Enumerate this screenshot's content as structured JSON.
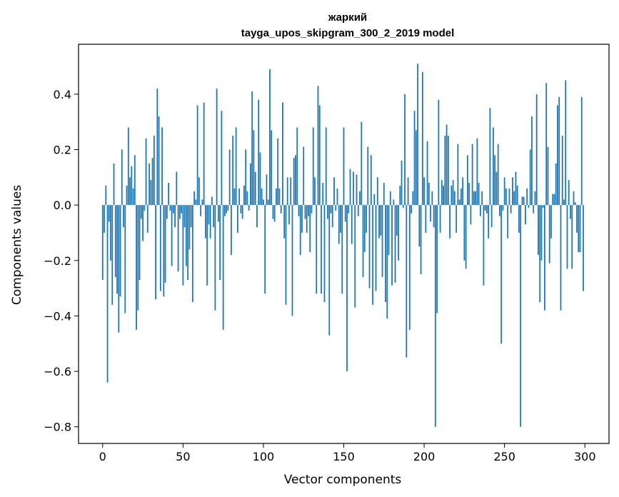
{
  "chart_data": {
    "type": "bar",
    "title": "жаркий",
    "subtitle": "tayga_upos_skipgram_300_2_2019 model",
    "xlabel": "Vector components",
    "ylabel": "Components values",
    "xlim": [
      -15,
      315
    ],
    "ylim": [
      -0.86,
      0.58
    ],
    "xticks": [
      0,
      50,
      100,
      150,
      200,
      250,
      300
    ],
    "xtick_labels": [
      "0",
      "50",
      "100",
      "150",
      "200",
      "250",
      "300"
    ],
    "yticks": [
      -0.8,
      -0.6,
      -0.4,
      -0.2,
      0.0,
      0.2,
      0.4
    ],
    "ytick_labels": [
      "−0.8",
      "−0.6",
      "−0.4",
      "−0.2",
      "0.0",
      "0.2",
      "0.4"
    ],
    "bar_color": "#1f77b4",
    "grid": false,
    "x": "indices 0..299",
    "values": [
      -0.27,
      -0.1,
      0.07,
      -0.64,
      -0.06,
      -0.2,
      -0.36,
      0.15,
      -0.26,
      -0.32,
      -0.46,
      -0.33,
      0.2,
      -0.08,
      -0.39,
      0.07,
      0.28,
      0.1,
      0.14,
      0.06,
      0.18,
      -0.45,
      -0.38,
      -0.27,
      -0.05,
      -0.13,
      -0.02,
      0.24,
      -0.1,
      0.15,
      0.09,
      0.17,
      0.25,
      -0.34,
      0.42,
      0.32,
      -0.31,
      0.28,
      -0.33,
      -0.28,
      -0.05,
      0.08,
      -0.02,
      -0.22,
      -0.03,
      -0.08,
      0.12,
      -0.24,
      -0.05,
      -0.03,
      -0.29,
      -0.08,
      -0.22,
      -0.27,
      -0.16,
      -0.08,
      -0.35,
      0.05,
      0.02,
      0.36,
      0.1,
      -0.04,
      0.02,
      0.37,
      -0.12,
      -0.29,
      -0.07,
      -0.12,
      0.03,
      -0.08,
      -0.38,
      0.42,
      -0.06,
      -0.27,
      0.34,
      -0.45,
      -0.04,
      -0.03,
      -0.02,
      0.2,
      -0.18,
      0.25,
      0.06,
      0.28,
      -0.1,
      0.06,
      -0.03,
      -0.05,
      0.07,
      0.2,
      0.05,
      -0.02,
      0.15,
      0.41,
      0.27,
      0.12,
      -0.08,
      0.38,
      0.19,
      0.06,
      0.02,
      -0.32,
      0.11,
      0.02,
      0.49,
      0.27,
      -0.05,
      -0.06,
      0.06,
      0.24,
      0.06,
      -0.03,
      0.37,
      -0.12,
      -0.36,
      0.1,
      -0.07,
      0.1,
      -0.4,
      0.17,
      0.18,
      0.28,
      -0.04,
      -0.18,
      -0.1,
      0.21,
      -0.05,
      -0.1,
      -0.04,
      -0.17,
      -0.03,
      0.28,
      0.1,
      -0.32,
      0.43,
      0.36,
      -0.32,
      0.08,
      -0.35,
      0.28,
      -0.05,
      -0.47,
      -0.03,
      -0.08,
      0.1,
      -0.02,
      0.06,
      -0.14,
      -0.1,
      -0.32,
      0.28,
      -0.06,
      -0.6,
      -0.03,
      0.13,
      -0.14,
      0.12,
      -0.37,
      0.11,
      -0.04,
      0.05,
      0.3,
      -0.26,
      -0.17,
      -0.1,
      0.21,
      -0.3,
      0.18,
      -0.36,
      0.04,
      -0.31,
      0.1,
      -0.12,
      -0.11,
      -0.26,
      0.08,
      -0.35,
      -0.41,
      -0.18,
      0.05,
      -0.29,
      0.02,
      -0.28,
      -0.11,
      -0.2,
      0.07,
      0.16,
      -0.01,
      0.4,
      -0.55,
      0.1,
      -0.45,
      -0.03,
      0.05,
      0.34,
      0.27,
      0.51,
      -0.15,
      -0.25,
      0.48,
      0.1,
      -0.1,
      0.23,
      0.08,
      -0.06,
      0.05,
      -0.08,
      -0.8,
      -0.39,
      0.38,
      -0.1,
      0.09,
      0.07,
      0.25,
      0.29,
      0.25,
      -0.12,
      0.07,
      0.09,
      0.05,
      -0.1,
      0.22,
      0.02,
      0.06,
      0.1,
      -0.2,
      -0.23,
      0.18,
      0.08,
      -0.07,
      0.22,
      0.05,
      0.05,
      0.24,
      0.08,
      -0.04,
      0.05,
      -0.29,
      -0.02,
      -0.03,
      -0.12,
      0.35,
      -0.08,
      0.28,
      0.18,
      0.12,
      0.22,
      -0.04,
      -0.5,
      -0.02,
      0.1,
      0.06,
      -0.12,
      0.06,
      -0.03,
      0.1,
      0.05,
      0.12,
      0.07,
      -0.1,
      -0.8,
      0.03,
      0.03,
      -0.07,
      0.06,
      -0.01,
      0.2,
      0.32,
      -0.03,
      0.05,
      0.4,
      -0.18,
      -0.35,
      -0.2,
      -0.01,
      -0.38,
      0.44,
      0.21,
      -0.21,
      -0.12,
      0.04,
      0.04,
      0.15,
      0.36,
      0.39,
      -0.38,
      0.25,
      0.02,
      0.45,
      -0.23,
      0.09,
      -0.05,
      -0.23,
      0.05,
      0.01,
      -0.1,
      -0.17,
      -0.17,
      0.39,
      -0.31
    ]
  }
}
